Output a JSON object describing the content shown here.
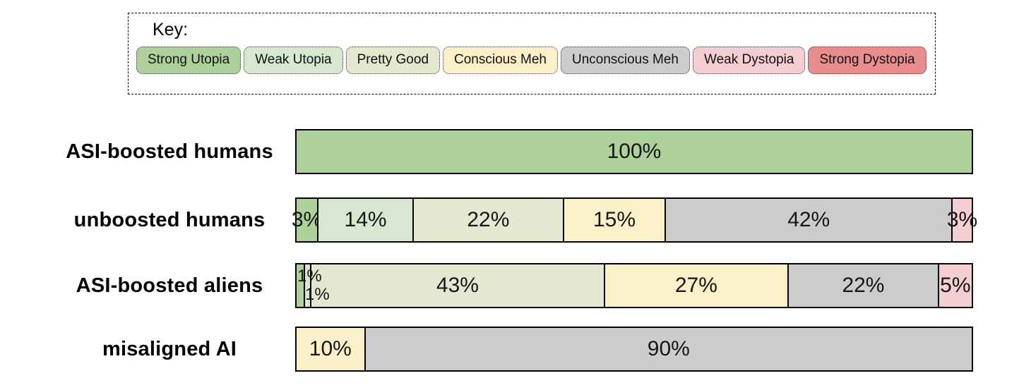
{
  "legend": {
    "title": "Key:"
  },
  "chart_data": {
    "type": "bar",
    "orientation": "horizontal-stacked",
    "unit": "%",
    "title": "",
    "legend_position": "top",
    "categories": [
      {
        "id": "strong-utopia",
        "label": "Strong Utopia",
        "color": "#aed09b"
      },
      {
        "id": "weak-utopia",
        "label": "Weak Utopia",
        "color": "#d7e7d0"
      },
      {
        "id": "pretty-good",
        "label": "Pretty Good",
        "color": "#e6e7d1"
      },
      {
        "id": "conscious-meh",
        "label": "Conscious Meh",
        "color": "#fcf0c8"
      },
      {
        "id": "unconscious-meh",
        "label": "Unconscious Meh",
        "color": "#cccccc"
      },
      {
        "id": "weak-dystopia",
        "label": "Weak Dystopia",
        "color": "#f4cdd1"
      },
      {
        "id": "strong-dystopia",
        "label": "Strong Dystopia",
        "color": "#e88e8e"
      }
    ],
    "rows": [
      {
        "label": "ASI-boosted humans",
        "segments": [
          {
            "category": "strong-utopia",
            "value": 100
          }
        ]
      },
      {
        "label": "unboosted humans",
        "segments": [
          {
            "category": "strong-utopia",
            "value": 3
          },
          {
            "category": "weak-utopia",
            "value": 14
          },
          {
            "category": "pretty-good",
            "value": 22
          },
          {
            "category": "conscious-meh",
            "value": 15
          },
          {
            "category": "unconscious-meh",
            "value": 42
          },
          {
            "category": "weak-dystopia",
            "value": 3
          }
        ]
      },
      {
        "label": "ASI-boosted aliens",
        "segments": [
          {
            "category": "strong-utopia",
            "value": 1
          },
          {
            "category": "weak-utopia",
            "value": 1
          },
          {
            "category": "pretty-good",
            "value": 43
          },
          {
            "category": "conscious-meh",
            "value": 27
          },
          {
            "category": "unconscious-meh",
            "value": 22
          },
          {
            "category": "weak-dystopia",
            "value": 5
          }
        ]
      },
      {
        "label": "misaligned AI",
        "segments": [
          {
            "category": "conscious-meh",
            "value": 10
          },
          {
            "category": "unconscious-meh",
            "value": 90
          }
        ]
      }
    ]
  }
}
